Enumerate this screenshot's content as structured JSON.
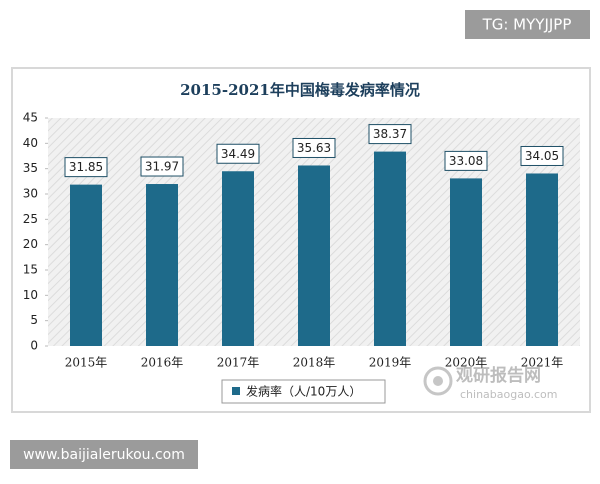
{
  "overlay": {
    "top_right": "TG: MYYJJPP",
    "bottom_left": "www.baijialerukou.com"
  },
  "watermark": {
    "name": "观研报告网",
    "url": "chinabaogao.com"
  },
  "chart_data": {
    "type": "bar",
    "title": "2015-2021年中国梅毒发病率情况",
    "categories": [
      "2015年",
      "2016年",
      "2017年",
      "2018年",
      "2019年",
      "2020年",
      "2021年"
    ],
    "series": [
      {
        "name": "发病率（人/10万人）",
        "color": "#1e6a8a",
        "values": [
          31.85,
          31.97,
          34.49,
          35.63,
          38.37,
          33.08,
          34.05
        ]
      }
    ],
    "ylim": [
      0,
      45
    ],
    "yticks": [
      0,
      5,
      10,
      15,
      20,
      25,
      30,
      35,
      40,
      45
    ]
  }
}
